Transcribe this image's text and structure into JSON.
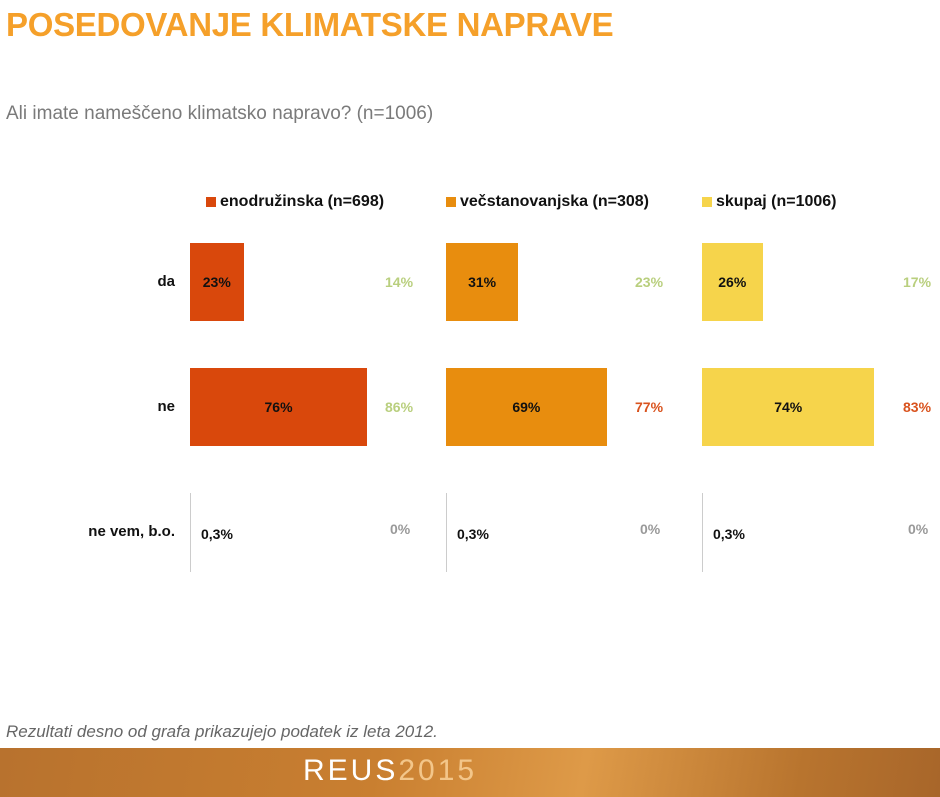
{
  "title": "POSEDOVANJE KLIMATSKE NAPRAVE",
  "subtitle": "Ali imate nameščeno klimatsko napravo? (n=1006)",
  "note": "Rezultati desno od grafa prikazujejo podatek iz leta 2012.",
  "footer": {
    "logo_main": "REUS",
    "logo_year": "2015"
  },
  "chart_data": {
    "type": "bar",
    "orientation": "horizontal",
    "categories": [
      "da",
      "ne",
      "ne vem, b.o."
    ],
    "xlim": [
      0,
      100
    ],
    "grid": false,
    "legend_position": "top",
    "series": [
      {
        "name": "enodružinska (n=698)",
        "color": "#D9480C",
        "values": [
          23,
          76,
          0.3
        ],
        "labels": [
          "23%",
          "76%",
          "0,3%"
        ],
        "values_2012": [
          14,
          86,
          0
        ],
        "labels_2012": [
          "14%",
          "86%",
          "0%"
        ]
      },
      {
        "name": "večstanovanjska (n=308)",
        "color": "#E88D0E",
        "values": [
          31,
          69,
          0.3
        ],
        "labels": [
          "31%",
          "69%",
          "0,3%"
        ],
        "values_2012": [
          23,
          77,
          0
        ],
        "labels_2012": [
          "23%",
          "77%",
          "0%"
        ]
      },
      {
        "name": "skupaj (n=1006)",
        "color": "#F6D44B",
        "values": [
          26,
          74,
          0.3
        ],
        "labels": [
          "26%",
          "74%",
          "0,3%"
        ],
        "values_2012": [
          17,
          83,
          0
        ],
        "labels_2012": [
          "17%",
          "83%",
          "0%"
        ]
      }
    ],
    "label_2012_colors": [
      "#B9CF7E",
      "#B9CF7E",
      "#999999"
    ],
    "label_2012_colors_by_series_row1": [
      "#B9CF7E",
      "#D9531E",
      "#D9531E"
    ]
  }
}
